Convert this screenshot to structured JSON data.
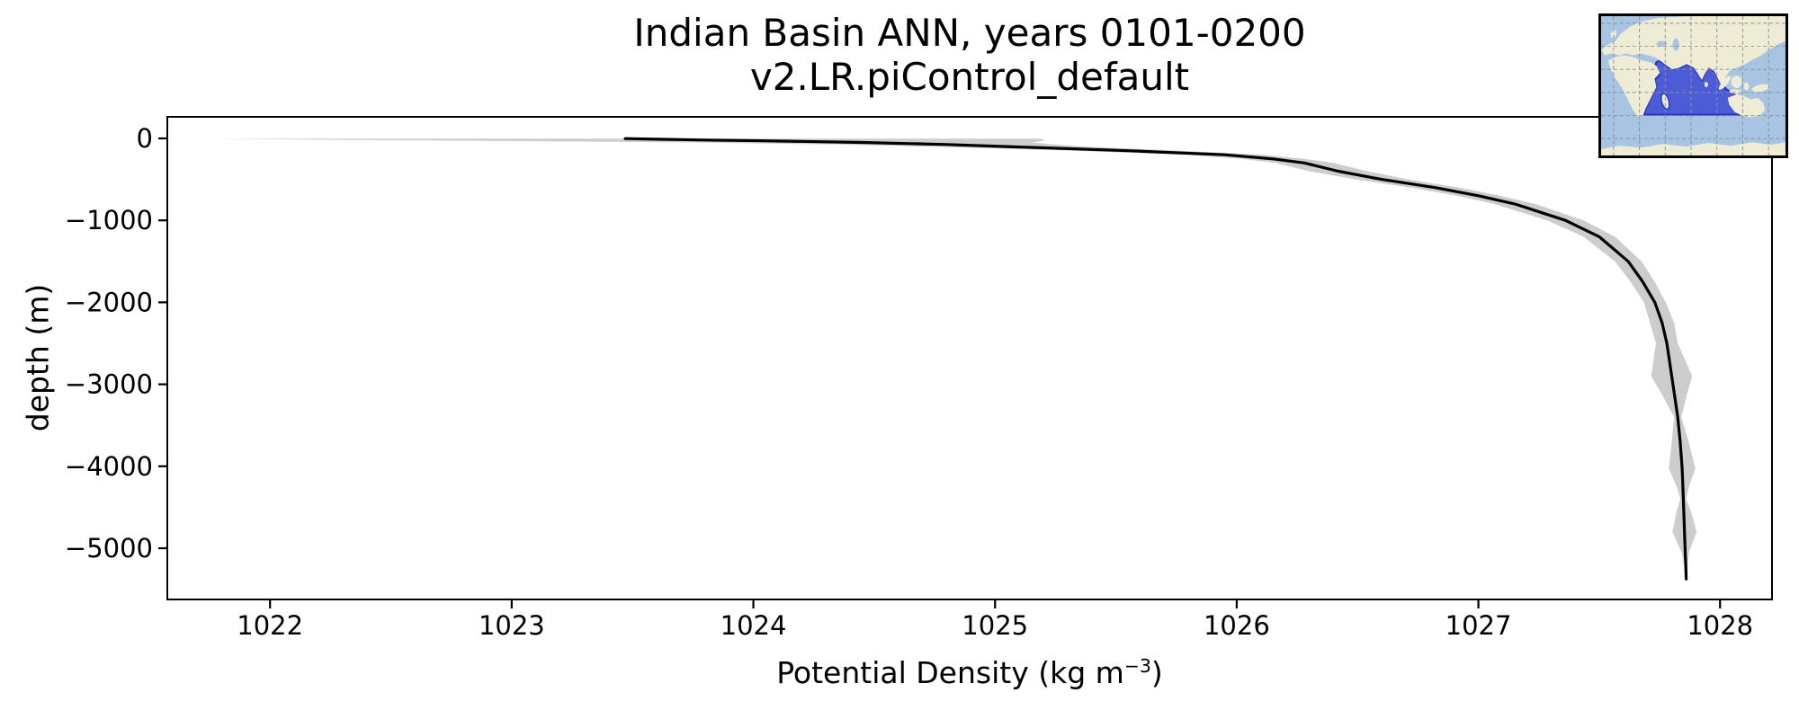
{
  "title": {
    "line1": "Indian Basin ANN, years 0101-0200",
    "line2": "v2.LR.piControl_default"
  },
  "axes": {
    "xlabel_prefix": "Potential Density (kg m",
    "xlabel_sup": "−3",
    "xlabel_suffix": ")",
    "ylabel": "depth (m)",
    "x_tick_labels": [
      "1022",
      "1023",
      "1024",
      "1025",
      "1026",
      "1027",
      "1028"
    ],
    "y_tick_labels": [
      "0",
      "−1000",
      "−2000",
      "−3000",
      "−4000",
      "−5000"
    ]
  },
  "chart_data": {
    "type": "line",
    "title": "Indian Basin ANN, years 0101-0200 v2.LR.piControl_default",
    "xlabel": "Potential Density (kg m−3)",
    "ylabel": "depth (m)",
    "xlim": [
      1021.575,
      1028.215
    ],
    "ylim": [
      -5625,
      263
    ],
    "x_ticks": [
      1022,
      1023,
      1024,
      1025,
      1026,
      1027,
      1028
    ],
    "y_ticks": [
      0,
      -1000,
      -2000,
      -3000,
      -4000,
      -5000
    ],
    "grid": false,
    "legend": "none",
    "series": [
      {
        "name": "mean potential density profile",
        "style": "solid line",
        "color": "#000000",
        "depth_m": [
          -2.5,
          -10,
          -20,
          -30,
          -50,
          -75,
          -100,
          -150,
          -200,
          -250,
          -300,
          -400,
          -500,
          -600,
          -700,
          -800,
          -1000,
          -1200,
          -1500,
          -1750,
          -2000,
          -2250,
          -2500,
          -2700,
          -2900,
          -3100,
          -3400,
          -3700,
          -4030,
          -4250,
          -4400,
          -4550,
          -4800,
          -5050,
          -5200,
          -5375
        ],
        "values_kg_m3": [
          1023.47,
          1023.6,
          1023.8,
          1024.05,
          1024.45,
          1024.8,
          1025.05,
          1025.55,
          1025.95,
          1026.15,
          1026.28,
          1026.42,
          1026.6,
          1026.82,
          1027.0,
          1027.15,
          1027.36,
          1027.5,
          1027.62,
          1027.68,
          1027.73,
          1027.76,
          1027.78,
          1027.79,
          1027.8,
          1027.81,
          1027.825,
          1027.835,
          1027.843,
          1027.846,
          1027.848,
          1027.85,
          1027.853,
          1027.856,
          1027.858,
          1027.86
        ]
      },
      {
        "name": "plus-minus one standard deviation envelope",
        "style": "filled band",
        "color": "#cdcdcd",
        "depth_m": [
          -2.5,
          -10,
          -20,
          -30,
          -50,
          -75,
          -100,
          -150,
          -200,
          -250,
          -300,
          -400,
          -500,
          -600,
          -700,
          -800,
          -1000,
          -1200,
          -1500,
          -1750,
          -2000,
          -2250,
          -2500,
          -2700,
          -2900,
          -3100,
          -3400,
          -3700,
          -4030,
          -4250,
          -4400,
          -4550,
          -4800,
          -5050,
          -5200,
          -5375
        ],
        "std_kg_m3": [
          1.7,
          1.6,
          1.4,
          1.15,
          0.7,
          0.45,
          0.32,
          0.22,
          0.16,
          0.13,
          0.12,
          0.12,
          0.11,
          0.1,
          0.09,
          0.085,
          0.075,
          0.065,
          0.055,
          0.05,
          0.045,
          0.05,
          0.045,
          0.065,
          0.085,
          0.055,
          0.015,
          0.035,
          0.055,
          0.025,
          0.012,
          0.03,
          0.05,
          0.015,
          0.007,
          0.004
        ]
      }
    ],
    "colors": {
      "line": "#000000",
      "envelope": "#cdcdcd",
      "spines": "#000000"
    }
  },
  "inset_map": {
    "name": "Indian Ocean basin location map",
    "highlighted_region": "Indian Basin",
    "colors": {
      "ocean": "#a7c5e3",
      "land": "#efecd5",
      "basin_fill": "#4c5cd6",
      "basin_edge": "#2733c0",
      "gridline": "#8a9097",
      "border": "#000000"
    }
  }
}
